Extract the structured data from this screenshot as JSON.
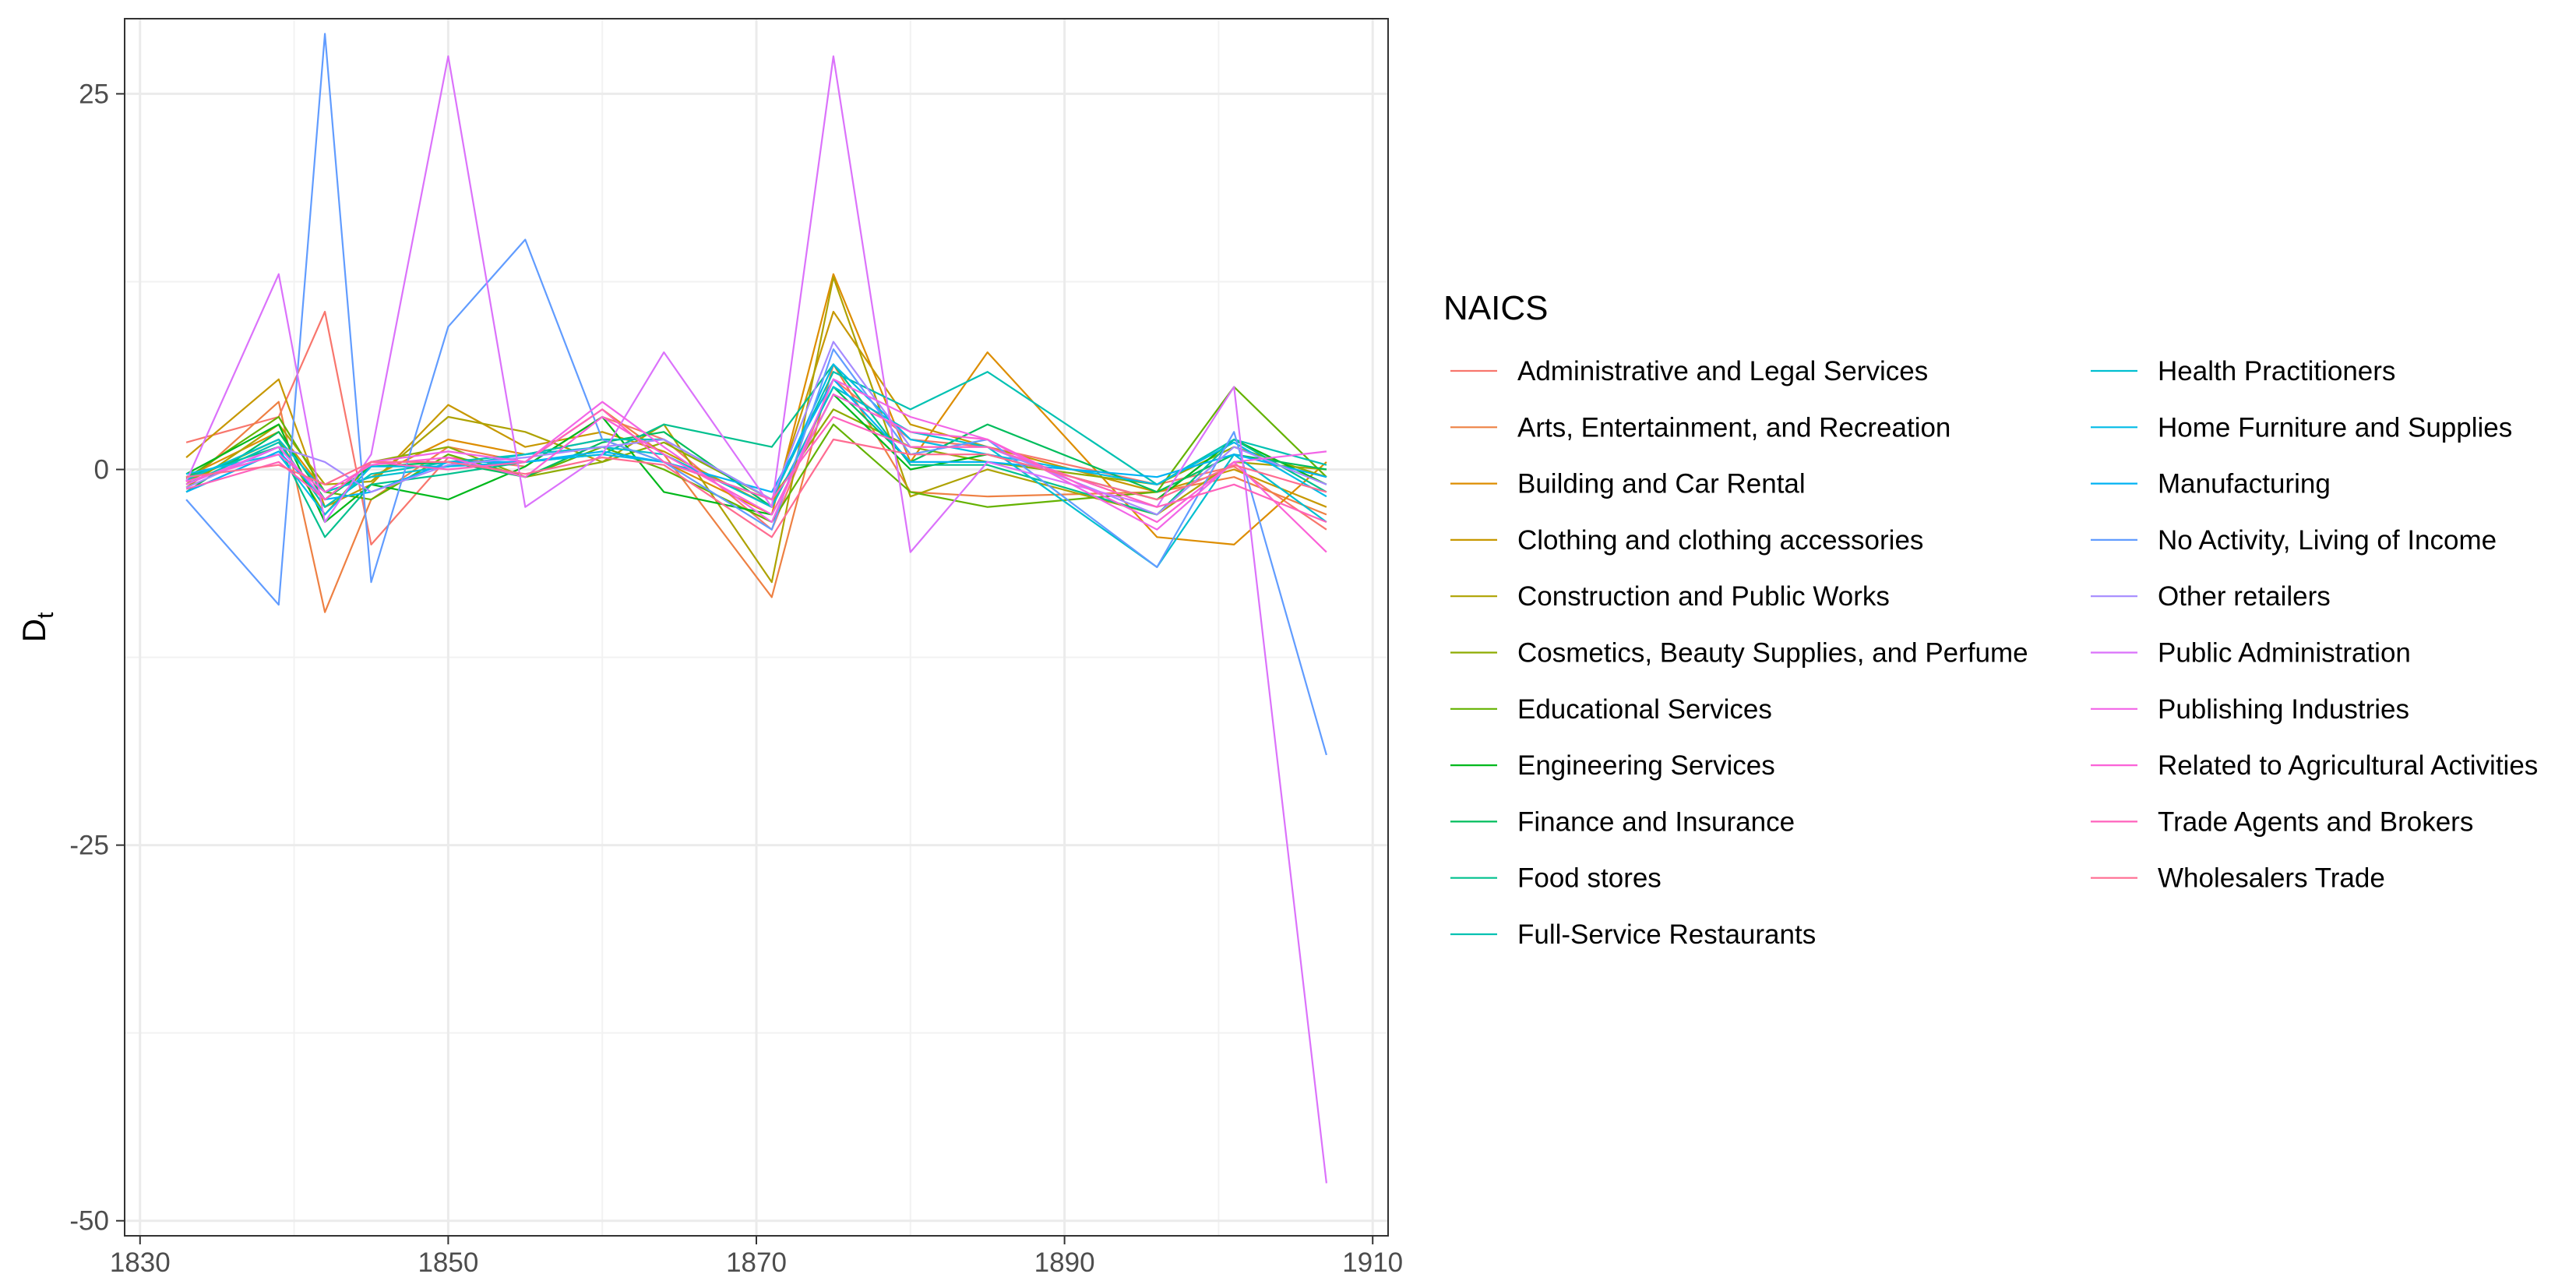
{
  "chart_data": {
    "type": "line",
    "xlabel": "",
    "ylabel": "D",
    "ylabel_subscript": "t",
    "xlim": [
      1829,
      1911
    ],
    "ylim": [
      -51,
      30
    ],
    "xticks": [
      1830,
      1850,
      1870,
      1890,
      1910
    ],
    "yticks": [
      -50,
      -25,
      0,
      25
    ],
    "grid": true,
    "legend_title": "NAICS",
    "legend_position": "right",
    "x": [
      1833,
      1839,
      1842,
      1845,
      1850,
      1855,
      1860,
      1864,
      1871,
      1875,
      1880,
      1885,
      1896,
      1901,
      1907
    ],
    "series": [
      {
        "name": "Administrative and Legal Services",
        "color": "#F8766D",
        "values": [
          1.8,
          3.5,
          10.5,
          -5.0,
          0.8,
          0.2,
          3.5,
          2.0,
          -4.0,
          6.0,
          2.0,
          1.5,
          -1.0,
          0.2,
          -4.0
        ]
      },
      {
        "name": "Arts, Entertainment, and Recreation",
        "color": "#EE8043",
        "values": [
          -1.0,
          4.5,
          -9.5,
          -2.0,
          1.5,
          0.5,
          4.0,
          1.0,
          -8.5,
          7.0,
          -1.5,
          -1.8,
          -1.5,
          -0.5,
          -3.0
        ]
      },
      {
        "name": "Building and Car Rental",
        "color": "#DD8D00",
        "values": [
          -0.5,
          2.5,
          -1.5,
          -0.5,
          2.0,
          1.0,
          2.0,
          0.5,
          -3.0,
          13.0,
          0.5,
          7.8,
          -4.5,
          -5.0,
          0.5
        ]
      },
      {
        "name": "Clothing and clothing accessories",
        "color": "#C79800",
        "values": [
          0.8,
          6.0,
          -2.5,
          -1.0,
          4.3,
          1.5,
          2.5,
          1.2,
          -2.5,
          10.5,
          3.0,
          1.5,
          -1.5,
          0.0,
          -2.5
        ]
      },
      {
        "name": "Construction and Public Works",
        "color": "#AEA200",
        "values": [
          -1.2,
          3.0,
          -1.0,
          -0.8,
          3.5,
          2.5,
          0.5,
          3.0,
          -7.5,
          12.8,
          -1.8,
          0.0,
          -3.0,
          0.5,
          0.0
        ]
      },
      {
        "name": "Cosmetics, Beauty Supplies, and Perfume",
        "color": "#8EAB00",
        "values": [
          -0.8,
          2.0,
          -3.0,
          0.5,
          1.5,
          -0.5,
          0.5,
          1.8,
          -2.0,
          4.0,
          1.5,
          0.5,
          -1.0,
          1.5,
          -0.5
        ]
      },
      {
        "name": "Educational Services",
        "color": "#64B200",
        "values": [
          -0.6,
          3.5,
          -1.5,
          -2.0,
          1.0,
          -0.5,
          1.5,
          0.0,
          -3.5,
          3.0,
          -1.5,
          -2.5,
          -1.5,
          5.5,
          -0.5
        ]
      },
      {
        "name": "Engineering Services",
        "color": "#00B81B",
        "values": [
          -0.3,
          3.0,
          -3.5,
          -1.0,
          -2.0,
          0.2,
          3.5,
          -1.5,
          -3.0,
          5.0,
          0.0,
          1.0,
          -2.0,
          2.0,
          -1.0
        ]
      },
      {
        "name": "Finance and Insurance",
        "color": "#00BD5C",
        "values": [
          -1.5,
          2.5,
          -2.0,
          0.2,
          0.5,
          -0.5,
          1.8,
          2.5,
          -2.5,
          5.5,
          0.5,
          3.0,
          -1.5,
          1.0,
          0.0
        ]
      },
      {
        "name": "Food stores",
        "color": "#00C08E",
        "values": [
          -0.5,
          1.5,
          -4.5,
          -1.0,
          -0.3,
          0.5,
          1.0,
          3.0,
          1.5,
          7.0,
          0.3,
          0.3,
          -3.0,
          2.0,
          -1.5
        ]
      },
      {
        "name": "Full-Service Restaurants",
        "color": "#00C1B2",
        "values": [
          -1.0,
          1.8,
          -2.5,
          -0.3,
          0.5,
          1.0,
          2.0,
          2.0,
          -2.0,
          6.5,
          4.0,
          6.5,
          -1.0,
          2.0,
          0.3
        ]
      },
      {
        "name": "Health Practitioners",
        "color": "#00BFD0",
        "values": [
          -0.7,
          2.0,
          -1.5,
          -0.5,
          0.2,
          1.0,
          1.5,
          1.0,
          -2.5,
          5.5,
          2.5,
          1.5,
          -6.5,
          1.0,
          -3.5
        ]
      },
      {
        "name": "Home Furniture and Supplies",
        "color": "#00BBE7",
        "values": [
          -0.3,
          1.0,
          -3.0,
          0.2,
          0.2,
          0.5,
          1.0,
          0.5,
          -2.0,
          7.0,
          2.0,
          1.0,
          -1.0,
          1.8,
          -1.8
        ]
      },
      {
        "name": "Manufacturing",
        "color": "#00B2F3",
        "values": [
          -1.5,
          1.2,
          -2.0,
          -1.5,
          0.5,
          0.5,
          1.2,
          0.5,
          -1.5,
          6.0,
          0.5,
          0.5,
          -0.5,
          1.0,
          -0.5
        ]
      },
      {
        "name": "No Activity, Living of Income",
        "color": "#619CFF",
        "values": [
          -2.0,
          -9.0,
          29.0,
          -7.5,
          9.5,
          15.3,
          2.0,
          0.5,
          -4.0,
          8.0,
          1.0,
          2.0,
          -6.5,
          2.5,
          -19.0
        ]
      },
      {
        "name": "Other retailers",
        "color": "#A58AFF",
        "values": [
          -1.2,
          1.5,
          0.5,
          -1.5,
          0.3,
          0.8,
          1.5,
          2.0,
          -2.0,
          8.5,
          1.5,
          1.5,
          -3.0,
          1.5,
          -1.0
        ]
      },
      {
        "name": "Public Administration",
        "color": "#DB72FB",
        "values": [
          -0.8,
          13.0,
          -3.5,
          1.0,
          27.5,
          -2.5,
          1.0,
          7.8,
          -2.5,
          27.5,
          -5.5,
          0.5,
          -2.5,
          5.5,
          -47.5
        ]
      },
      {
        "name": "Publishing Industries",
        "color": "#F265E7",
        "values": [
          -1.0,
          1.5,
          -2.0,
          0.5,
          1.2,
          0.5,
          4.5,
          1.5,
          -3.5,
          6.0,
          3.5,
          2.0,
          -4.0,
          0.5,
          1.2
        ]
      },
      {
        "name": "Related to Agricultural Activities",
        "color": "#FB61D7",
        "values": [
          -0.8,
          1.0,
          -1.5,
          0.3,
          0.8,
          -0.5,
          3.5,
          1.0,
          -3.0,
          5.0,
          2.5,
          2.0,
          -3.5,
          0.5,
          -5.5
        ]
      },
      {
        "name": "Trade Agents and Brokers",
        "color": "#FF62BC",
        "values": [
          -1.3,
          0.5,
          -2.0,
          0.5,
          0.0,
          0.5,
          4.0,
          0.5,
          -2.0,
          3.5,
          1.5,
          1.5,
          -2.5,
          -1.0,
          -3.5
        ]
      },
      {
        "name": "Wholesalers Trade",
        "color": "#FF6C91",
        "values": [
          -0.5,
          0.3,
          -1.0,
          0.5,
          0.5,
          -0.3,
          0.8,
          0.3,
          -4.5,
          2.0,
          1.0,
          1.0,
          -2.0,
          0.3,
          -1.5
        ]
      }
    ]
  }
}
